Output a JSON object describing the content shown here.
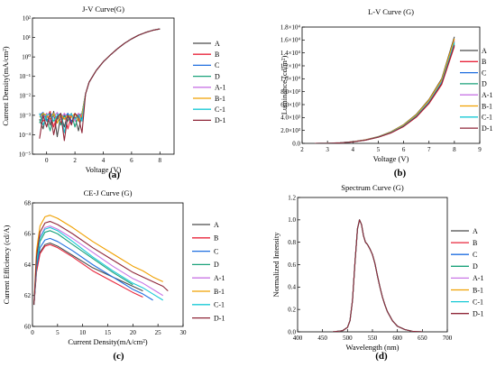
{
  "series_colors": {
    "A": "#4a4a4a",
    "B": "#e8253b",
    "C": "#1f6fe0",
    "D": "#1aa27a",
    "A-1": "#c977e6",
    "B-1": "#f0a000",
    "C-1": "#18c9d6",
    "D-1": "#8f2638"
  },
  "chart_data": [
    {
      "id": "a",
      "type": "line",
      "panel_label": "(a)",
      "title": "J-V Curve(G)",
      "xlabel": "Voltage (V)",
      "ylabel": "Current Density(mA/cm²)",
      "xlim": [
        -1,
        9
      ],
      "ylim_log10": [
        -5,
        2
      ],
      "yscale": "log",
      "x_ticks": [
        0,
        2,
        4,
        6,
        8
      ],
      "y_ticks": [
        {
          "v": -5,
          "label": "10⁻⁵"
        },
        {
          "v": -4,
          "label": "10⁻⁴"
        },
        {
          "v": -3,
          "label": "10⁻³"
        },
        {
          "v": -2,
          "label": "10⁻²"
        },
        {
          "v": -1,
          "label": "10⁻¹"
        },
        {
          "v": 0,
          "label": "10⁰"
        },
        {
          "v": 1,
          "label": "10¹"
        },
        {
          "v": 2,
          "label": "10²"
        }
      ],
      "legend": [
        "A",
        "B",
        "C",
        "D",
        "A-1",
        "B-1",
        "C-1",
        "D-1"
      ],
      "x": [
        -0.5,
        -0.25,
        0,
        0.25,
        0.5,
        0.75,
        1,
        1.25,
        1.5,
        1.75,
        2,
        2.25,
        2.5,
        2.75,
        3,
        3.5,
        4,
        4.5,
        5,
        5.5,
        6,
        6.5,
        7,
        7.5,
        8
      ],
      "series": [
        {
          "name": "A",
          "y": [
            -3.2,
            -3.7,
            -2.9,
            -3.5,
            -2.8,
            -4.1,
            -3.0,
            -3.6,
            -2.9,
            -3.3,
            -3.1,
            -3.8,
            -2.9,
            -1.9,
            -1.3,
            -0.7,
            -0.25,
            0.1,
            0.42,
            0.7,
            0.93,
            1.12,
            1.26,
            1.37,
            1.44
          ]
        },
        {
          "name": "B",
          "y": [
            -2.9,
            -3.3,
            -3.1,
            -2.8,
            -3.6,
            -3.0,
            -3.4,
            -2.9,
            -3.7,
            -3.0,
            -3.2,
            -2.9,
            -3.1,
            -1.9,
            -1.3,
            -0.7,
            -0.25,
            0.1,
            0.42,
            0.7,
            0.93,
            1.12,
            1.26,
            1.37,
            1.44
          ]
        },
        {
          "name": "C",
          "y": [
            -3.0,
            -2.85,
            -3.3,
            -3.0,
            -2.9,
            -3.2,
            -2.95,
            -3.1,
            -2.9,
            -3.4,
            -2.95,
            -3.0,
            -3.2,
            -1.9,
            -1.3,
            -0.7,
            -0.25,
            0.1,
            0.42,
            0.7,
            0.93,
            1.12,
            1.26,
            1.37,
            1.44
          ]
        },
        {
          "name": "D",
          "y": [
            -3.4,
            -2.9,
            -3.2,
            -3.8,
            -3.0,
            -2.9,
            -3.5,
            -3.0,
            -3.3,
            -2.9,
            -3.6,
            -3.0,
            -2.9,
            -1.9,
            -1.3,
            -0.7,
            -0.25,
            0.1,
            0.42,
            0.7,
            0.93,
            1.12,
            1.26,
            1.37,
            1.44
          ]
        },
        {
          "name": "A-1",
          "y": [
            -2.95,
            -3.1,
            -2.9,
            -3.3,
            -3.1,
            -2.85,
            -3.2,
            -2.9,
            -3.1,
            -2.95,
            -3.3,
            -2.9,
            -3.0,
            -1.9,
            -1.3,
            -0.7,
            -0.25,
            0.1,
            0.42,
            0.7,
            0.93,
            1.12,
            1.26,
            1.37,
            1.44
          ]
        },
        {
          "name": "B-1",
          "y": [
            -3.1,
            -2.9,
            -3.0,
            -3.2,
            -2.9,
            -3.4,
            -2.95,
            -3.2,
            -3.0,
            -3.1,
            -2.9,
            -3.3,
            -3.0,
            -1.9,
            -1.3,
            -0.7,
            -0.25,
            0.1,
            0.42,
            0.7,
            0.93,
            1.12,
            1.26,
            1.37,
            1.44
          ]
        },
        {
          "name": "C-1",
          "y": [
            -2.9,
            -3.5,
            -3.0,
            -2.9,
            -3.3,
            -3.0,
            -2.9,
            -3.9,
            -3.0,
            -2.95,
            -3.2,
            -3.0,
            -3.3,
            -1.9,
            -1.3,
            -0.7,
            -0.25,
            0.1,
            0.42,
            0.7,
            0.93,
            1.12,
            1.26,
            1.37,
            1.44
          ]
        },
        {
          "name": "D-1",
          "y": [
            -4.2,
            -3.0,
            -3.6,
            -2.9,
            -4.0,
            -3.1,
            -2.9,
            -4.3,
            -3.0,
            -3.5,
            -2.9,
            -3.1,
            -3.9,
            -1.9,
            -1.3,
            -0.7,
            -0.25,
            0.1,
            0.42,
            0.7,
            0.93,
            1.12,
            1.26,
            1.37,
            1.44
          ]
        }
      ]
    },
    {
      "id": "b",
      "type": "line",
      "panel_label": "(b)",
      "title": "L-V Curve (G)",
      "xlabel": "Voltage (V)",
      "ylabel": "Luminance (cd/m²)",
      "xlim": [
        2,
        9
      ],
      "ylim": [
        0,
        18000
      ],
      "x_ticks": [
        2,
        3,
        4,
        5,
        6,
        7,
        8,
        9
      ],
      "y_ticks": [
        {
          "v": 0,
          "label": "0.0"
        },
        {
          "v": 2000,
          "label": "2.0×10³"
        },
        {
          "v": 4000,
          "label": "4.0×10³"
        },
        {
          "v": 6000,
          "label": "6.0×10³"
        },
        {
          "v": 8000,
          "label": "8.0×10³"
        },
        {
          "v": 10000,
          "label": "1.0×10⁴"
        },
        {
          "v": 12000,
          "label": "1.2×10⁴"
        },
        {
          "v": 14000,
          "label": "1.4×10⁴"
        },
        {
          "v": 16000,
          "label": "1.6×10⁴"
        },
        {
          "v": 18000,
          "label": "1.8×10⁴"
        }
      ],
      "legend": [
        "A",
        "B",
        "C",
        "D",
        "A-1",
        "B-1",
        "C-1",
        "D-1"
      ],
      "x": [
        2.5,
        3,
        3.5,
        4,
        4.5,
        5,
        5.5,
        6,
        6.5,
        7,
        7.5,
        8
      ],
      "series": [
        {
          "name": "A",
          "y": [
            0,
            20,
            90,
            260,
            560,
            1050,
            1800,
            2900,
            4500,
            6800,
            10000,
            16500
          ]
        },
        {
          "name": "B",
          "y": [
            0,
            18,
            80,
            230,
            500,
            940,
            1600,
            2600,
            4050,
            6150,
            9100,
            15000
          ]
        },
        {
          "name": "C",
          "y": [
            0,
            19,
            86,
            245,
            530,
            1000,
            1700,
            2760,
            4300,
            6500,
            9600,
            15800
          ]
        },
        {
          "name": "D",
          "y": [
            0,
            19,
            84,
            240,
            520,
            980,
            1670,
            2700,
            4200,
            6350,
            9400,
            15400
          ]
        },
        {
          "name": "A-1",
          "y": [
            0,
            19,
            87,
            250,
            540,
            1020,
            1730,
            2800,
            4370,
            6600,
            9750,
            16000
          ]
        },
        {
          "name": "B-1",
          "y": [
            0,
            20,
            88,
            255,
            550,
            1030,
            1760,
            2850,
            4420,
            6700,
            9850,
            16200
          ]
        },
        {
          "name": "C-1",
          "y": [
            0,
            19,
            85,
            245,
            525,
            990,
            1690,
            2730,
            4250,
            6420,
            9500,
            15600
          ]
        },
        {
          "name": "D-1",
          "y": [
            0,
            18,
            82,
            235,
            510,
            960,
            1630,
            2640,
            4120,
            6250,
            9250,
            15200
          ]
        }
      ]
    },
    {
      "id": "c",
      "type": "line",
      "panel_label": "(c)",
      "title": "CE-J Curve (G)",
      "xlabel": "Current Density(mA/cm²)",
      "ylabel": "Current Efficiency (cd/A)",
      "xlim": [
        0,
        30
      ],
      "ylim": [
        60,
        68
      ],
      "x_ticks": [
        0,
        5,
        10,
        15,
        20,
        25,
        30
      ],
      "y_ticks": [
        {
          "v": 60,
          "label": "60"
        },
        {
          "v": 62,
          "label": "62"
        },
        {
          "v": 64,
          "label": "64"
        },
        {
          "v": 66,
          "label": "66"
        },
        {
          "v": 68,
          "label": "68"
        }
      ],
      "legend": [
        "A",
        "B",
        "C",
        "D",
        "A-1",
        "B-1",
        "C-1",
        "D-1"
      ],
      "x": [
        0.3,
        0.8,
        1.5,
        2.5,
        3.5,
        5,
        8,
        12,
        16,
        20,
        22,
        24,
        26,
        27
      ],
      "series": [
        {
          "name": "A",
          "y": [
            61.4,
            63.6,
            64.8,
            65.3,
            65.4,
            65.2,
            64.6,
            63.8,
            63.2,
            62.6,
            62.3,
            null,
            null,
            null
          ]
        },
        {
          "name": "B",
          "y": [
            61.4,
            63.5,
            64.7,
            65.2,
            65.3,
            65.1,
            64.5,
            63.6,
            62.9,
            62.2,
            61.9,
            null,
            null,
            null
          ]
        },
        {
          "name": "C",
          "y": [
            61.4,
            63.8,
            65.1,
            65.6,
            65.7,
            65.5,
            64.9,
            64.0,
            63.2,
            62.4,
            62.1,
            61.7,
            null,
            null
          ]
        },
        {
          "name": "D",
          "y": [
            61.4,
            64.0,
            65.5,
            66.1,
            66.2,
            66.0,
            65.3,
            64.4,
            63.5,
            62.7,
            null,
            null,
            null,
            null
          ]
        },
        {
          "name": "A-1",
          "y": [
            61.4,
            64.3,
            65.8,
            66.4,
            66.5,
            66.3,
            65.7,
            64.8,
            63.9,
            63.1,
            62.8,
            62.4,
            62.0,
            null
          ]
        },
        {
          "name": "B-1",
          "y": [
            61.4,
            64.9,
            66.5,
            67.1,
            67.2,
            67.0,
            66.4,
            65.5,
            64.7,
            63.9,
            63.6,
            63.2,
            62.9,
            null
          ]
        },
        {
          "name": "C-1",
          "y": [
            61.4,
            64.1,
            65.7,
            66.3,
            66.4,
            66.2,
            65.5,
            64.5,
            63.6,
            62.8,
            62.5,
            62.1,
            61.7,
            null
          ]
        },
        {
          "name": "D-1",
          "y": [
            61.4,
            64.5,
            66.1,
            66.7,
            66.8,
            66.6,
            66.0,
            65.1,
            64.3,
            63.5,
            63.2,
            62.9,
            62.6,
            62.3
          ]
        }
      ]
    },
    {
      "id": "d",
      "type": "line",
      "panel_label": "(d)",
      "title": "Spectrum Curve (G)",
      "xlabel": "Wavelength (nm)",
      "ylabel": "Normalized Intensity",
      "xlim": [
        400,
        700
      ],
      "ylim": [
        0,
        1.2
      ],
      "x_ticks": [
        400,
        450,
        500,
        550,
        600,
        650,
        700
      ],
      "y_ticks": [
        {
          "v": 0.0,
          "label": "0.0"
        },
        {
          "v": 0.2,
          "label": "0.2"
        },
        {
          "v": 0.4,
          "label": "0.4"
        },
        {
          "v": 0.6,
          "label": "0.6"
        },
        {
          "v": 0.8,
          "label": "0.8"
        },
        {
          "v": 1.0,
          "label": "1.0"
        },
        {
          "v": 1.2,
          "label": "1.2"
        }
      ],
      "legend": [
        "A",
        "B",
        "C",
        "D",
        "A-1",
        "B-1",
        "C-1",
        "D-1"
      ],
      "x": [
        470,
        490,
        500,
        505,
        510,
        515,
        520,
        524,
        528,
        532,
        536,
        540,
        545,
        550,
        555,
        560,
        565,
        570,
        575,
        580,
        590,
        600,
        615,
        630,
        650
      ],
      "series": [
        {
          "name": "A",
          "y": [
            0,
            0.01,
            0.04,
            0.1,
            0.28,
            0.62,
            0.92,
            1.0,
            0.96,
            0.86,
            0.8,
            0.78,
            0.74,
            0.69,
            0.61,
            0.5,
            0.4,
            0.31,
            0.24,
            0.18,
            0.1,
            0.05,
            0.02,
            0.005,
            0
          ]
        },
        {
          "name": "B",
          "y": [
            0,
            0.01,
            0.04,
            0.1,
            0.28,
            0.62,
            0.92,
            1.0,
            0.96,
            0.86,
            0.8,
            0.78,
            0.74,
            0.69,
            0.61,
            0.5,
            0.4,
            0.31,
            0.24,
            0.18,
            0.1,
            0.05,
            0.02,
            0.005,
            0
          ]
        },
        {
          "name": "C",
          "y": [
            0,
            0.01,
            0.04,
            0.1,
            0.28,
            0.62,
            0.92,
            1.0,
            0.96,
            0.86,
            0.8,
            0.78,
            0.74,
            0.69,
            0.61,
            0.5,
            0.4,
            0.31,
            0.24,
            0.18,
            0.1,
            0.05,
            0.02,
            0.005,
            0
          ]
        },
        {
          "name": "D",
          "y": [
            0,
            0.01,
            0.04,
            0.1,
            0.28,
            0.62,
            0.92,
            1.0,
            0.96,
            0.86,
            0.8,
            0.78,
            0.74,
            0.69,
            0.61,
            0.5,
            0.4,
            0.31,
            0.24,
            0.18,
            0.1,
            0.05,
            0.02,
            0.005,
            0
          ]
        },
        {
          "name": "A-1",
          "y": [
            0,
            0.01,
            0.04,
            0.1,
            0.28,
            0.62,
            0.92,
            1.0,
            0.96,
            0.86,
            0.8,
            0.78,
            0.74,
            0.69,
            0.61,
            0.5,
            0.4,
            0.31,
            0.24,
            0.18,
            0.1,
            0.05,
            0.02,
            0.005,
            0
          ]
        },
        {
          "name": "B-1",
          "y": [
            0,
            0.01,
            0.04,
            0.1,
            0.28,
            0.62,
            0.92,
            1.0,
            0.96,
            0.86,
            0.8,
            0.78,
            0.74,
            0.69,
            0.61,
            0.5,
            0.4,
            0.31,
            0.24,
            0.18,
            0.1,
            0.05,
            0.02,
            0.005,
            0
          ]
        },
        {
          "name": "C-1",
          "y": [
            0,
            0.01,
            0.04,
            0.1,
            0.28,
            0.62,
            0.92,
            1.0,
            0.96,
            0.86,
            0.8,
            0.78,
            0.74,
            0.69,
            0.61,
            0.5,
            0.4,
            0.31,
            0.24,
            0.18,
            0.1,
            0.05,
            0.02,
            0.005,
            0
          ]
        },
        {
          "name": "D-1",
          "y": [
            0,
            0.01,
            0.04,
            0.1,
            0.28,
            0.62,
            0.92,
            1.0,
            0.96,
            0.86,
            0.8,
            0.78,
            0.74,
            0.69,
            0.61,
            0.5,
            0.4,
            0.31,
            0.24,
            0.18,
            0.1,
            0.05,
            0.02,
            0.005,
            0
          ]
        }
      ]
    }
  ]
}
